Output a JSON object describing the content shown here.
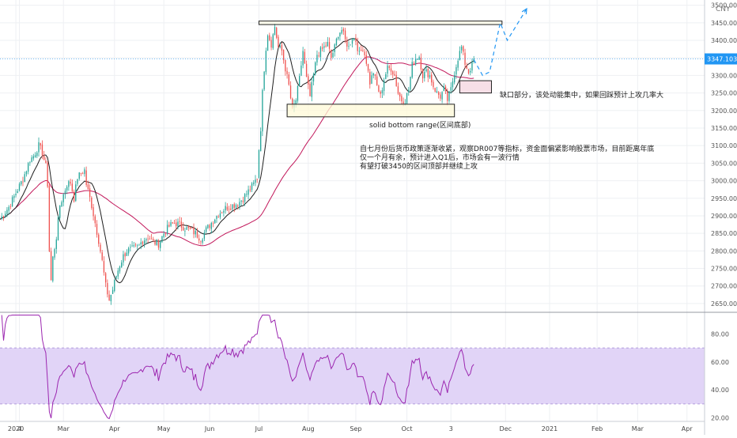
{
  "chart_data": [
    {
      "type": "candlestick",
      "currency": "CNY",
      "y_axis_ticks": [
        2650,
        2700,
        2750,
        2800,
        2850,
        2900,
        2950,
        3000,
        3050,
        3100,
        3150,
        3200,
        3250,
        3300,
        3350,
        3400,
        3450,
        3500
      ],
      "y_tick_labels": [
        "2650.00",
        "2700.00",
        "2750.00",
        "2800.00",
        "2850.00",
        "2900.00",
        "2950.00",
        "3000.00",
        "3050.00",
        "3100.00",
        "3150.00",
        "3200.00",
        "3250.00",
        "3300.00",
        "3350.00",
        "3400.00",
        "3450.00",
        "3500.00"
      ],
      "ylim": [
        2625,
        3515
      ],
      "x_ticks": [
        {
          "label": "2020",
          "t": 0
        },
        {
          "label": "4",
          "t": 2
        },
        {
          "label": "Mar",
          "t": 27
        },
        {
          "label": "Apr",
          "t": 56
        },
        {
          "label": "May",
          "t": 84
        },
        {
          "label": "Jun",
          "t": 110
        },
        {
          "label": "Jul",
          "t": 138
        },
        {
          "label": "Aug",
          "t": 166
        },
        {
          "label": "Sep",
          "t": 193
        },
        {
          "label": "Oct",
          "t": 222
        },
        {
          "label": "3",
          "t": 247
        },
        {
          "label": "Dec",
          "t": 278
        },
        {
          "label": "2021",
          "t": 303
        },
        {
          "label": "Feb",
          "t": 330
        },
        {
          "label": "Mar",
          "t": 353
        },
        {
          "label": "Apr",
          "t": 381
        }
      ],
      "xlim": [
        -9,
        391
      ],
      "price_anchors": [
        [
          -9,
          2890
        ],
        [
          -4,
          2925
        ],
        [
          0,
          2965
        ],
        [
          4,
          3005
        ],
        [
          8,
          3060
        ],
        [
          10,
          3070
        ],
        [
          13,
          3100
        ],
        [
          15,
          3080
        ],
        [
          17,
          3040
        ],
        [
          18,
          2990
        ],
        [
          19,
          2800
        ],
        [
          20,
          2715
        ],
        [
          21,
          2780
        ],
        [
          23,
          2840
        ],
        [
          25,
          2930
        ],
        [
          27,
          2960
        ],
        [
          29,
          2990
        ],
        [
          31,
          2995
        ],
        [
          33,
          2950
        ],
        [
          35,
          3010
        ],
        [
          37,
          3020
        ],
        [
          39,
          3030
        ],
        [
          40,
          2990
        ],
        [
          41,
          2970
        ],
        [
          43,
          2930
        ],
        [
          45,
          2880
        ],
        [
          47,
          2830
        ],
        [
          49,
          2770
        ],
        [
          51,
          2700
        ],
        [
          53,
          2660
        ],
        [
          55,
          2690
        ],
        [
          57,
          2730
        ],
        [
          59,
          2760
        ],
        [
          61,
          2785
        ],
        [
          63,
          2800
        ],
        [
          66,
          2805
        ],
        [
          69,
          2810
        ],
        [
          72,
          2830
        ],
        [
          75,
          2840
        ],
        [
          78,
          2825
        ],
        [
          81,
          2820
        ],
        [
          84,
          2850
        ],
        [
          87,
          2870
        ],
        [
          90,
          2880
        ],
        [
          93,
          2875
        ],
        [
          96,
          2865
        ],
        [
          99,
          2860
        ],
        [
          102,
          2850
        ],
        [
          105,
          2835
        ],
        [
          108,
          2860
        ],
        [
          111,
          2880
        ],
        [
          114,
          2900
        ],
        [
          117,
          2915
        ],
        [
          120,
          2925
        ],
        [
          123,
          2930
        ],
        [
          126,
          2935
        ],
        [
          129,
          2950
        ],
        [
          132,
          2970
        ],
        [
          135,
          2990
        ],
        [
          137,
          3010
        ],
        [
          138,
          3090
        ],
        [
          139,
          3150
        ],
        [
          140,
          3250
        ],
        [
          141,
          3320
        ],
        [
          142,
          3380
        ],
        [
          143,
          3420
        ],
        [
          145,
          3390
        ],
        [
          147,
          3440
        ],
        [
          149,
          3380
        ],
        [
          151,
          3370
        ],
        [
          153,
          3320
        ],
        [
          155,
          3270
        ],
        [
          157,
          3200
        ],
        [
          159,
          3230
        ],
        [
          161,
          3290
        ],
        [
          163,
          3370
        ],
        [
          165,
          3290
        ],
        [
          167,
          3240
        ],
        [
          169,
          3300
        ],
        [
          171,
          3360
        ],
        [
          173,
          3370
        ],
        [
          175,
          3380
        ],
        [
          177,
          3390
        ],
        [
          179,
          3350
        ],
        [
          181,
          3380
        ],
        [
          183,
          3420
        ],
        [
          185,
          3430
        ],
        [
          187,
          3400
        ],
        [
          189,
          3380
        ],
        [
          191,
          3410
        ],
        [
          193,
          3400
        ],
        [
          195,
          3360
        ],
        [
          197,
          3380
        ],
        [
          199,
          3340
        ],
        [
          201,
          3280
        ],
        [
          203,
          3310
        ],
        [
          205,
          3270
        ],
        [
          207,
          3240
        ],
        [
          209,
          3290
        ],
        [
          211,
          3320
        ],
        [
          213,
          3320
        ],
        [
          215,
          3300
        ],
        [
          217,
          3250
        ],
        [
          219,
          3230
        ],
        [
          221,
          3230
        ],
        [
          223,
          3260
        ],
        [
          225,
          3330
        ],
        [
          227,
          3350
        ],
        [
          229,
          3355
        ],
        [
          231,
          3300
        ],
        [
          233,
          3310
        ],
        [
          235,
          3300
        ],
        [
          237,
          3270
        ],
        [
          239,
          3250
        ],
        [
          241,
          3240
        ],
        [
          243,
          3260
        ],
        [
          245,
          3230
        ],
        [
          247,
          3260
        ],
        [
          249,
          3310
        ],
        [
          251,
          3350
        ],
        [
          253,
          3380
        ],
        [
          255,
          3335
        ],
        [
          257,
          3310
        ],
        [
          259,
          3330
        ],
        [
          260,
          3345
        ]
      ],
      "rsi_ticks": [
        20,
        40,
        60,
        80
      ],
      "rsi_tick_labels": [
        "20.00",
        "40.00",
        "60.00",
        "80.00"
      ],
      "rsi_range": [
        17.5,
        95.5
      ],
      "rsi_band": [
        30,
        70
      ],
      "last_price_label": "3347.103",
      "projection_path": [
        [
          260,
          3345
        ],
        [
          265,
          3300
        ],
        [
          269,
          3310
        ],
        [
          275,
          3450
        ],
        [
          279,
          3400
        ],
        [
          290,
          3490
        ]
      ],
      "top_range_box": {
        "t_start": 138,
        "t_end": 276,
        "low": 3445,
        "high": 3455
      },
      "bottom_range_box": {
        "t_start": 154,
        "t_end": 249,
        "low": 3182,
        "high": 3218
      },
      "gap_box": {
        "t_start": 252,
        "t_end": 270,
        "low": 3250,
        "high": 3285
      },
      "annotations": {
        "bottom_range_label": "solid bottom range(区间底部)",
        "gap_label": "缺口部分，该处动能集中，如果回踩预计上攻几率大",
        "outlook_text": [
          "自七月份后货币政策逐渐收紧，观察DR007等指标，资金面偏紧影响股票市场，目前距离年底",
          "仅一个月有余，预计进入Q1后，市场会有一波行情",
          "有望打破3450的区间顶部并继续上攻"
        ]
      },
      "colors": {
        "up": "#26a69a",
        "down": "#ef5350",
        "ma_short": "#1e1e1e",
        "ma_long": "#c2185b",
        "rsi_line": "#9c27b0",
        "rsi_band": "#e1d4f7",
        "price_label_bg": "#2196f3",
        "projection": "#2196f3"
      }
    }
  ]
}
